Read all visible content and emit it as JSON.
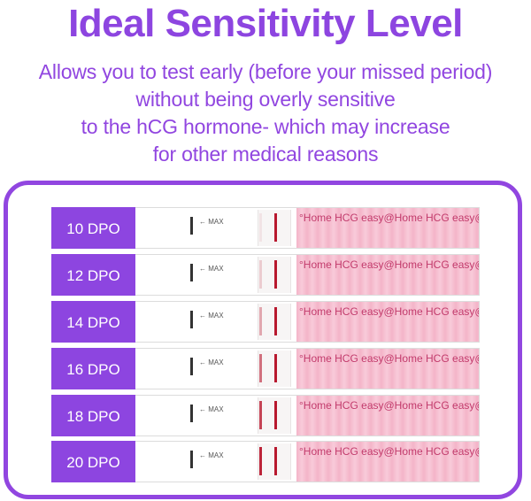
{
  "header": {
    "title": "Ideal Sensitivity Level",
    "subtitle_lines": [
      "Allows you to test early (before your missed period)",
      "without being overly sensitive",
      "to the hCG hormone- which may increase",
      "for other medical reasons"
    ]
  },
  "colors": {
    "accent": "#8d45e0",
    "control_line": "#b8182e",
    "strip_pink": "#f4b4c8"
  },
  "strip_common": {
    "max_label": "← MAX",
    "brand_repeat": "°Home HCG easy@Home HCG easy@Home HCG easy@Home"
  },
  "tests": [
    {
      "label": "10 DPO",
      "test_line_intensity": 0.08
    },
    {
      "label": "12 DPO",
      "test_line_intensity": 0.18
    },
    {
      "label": "14 DPO",
      "test_line_intensity": 0.35
    },
    {
      "label": "16 DPO",
      "test_line_intensity": 0.6
    },
    {
      "label": "18 DPO",
      "test_line_intensity": 0.8
    },
    {
      "label": "20 DPO",
      "test_line_intensity": 0.95
    }
  ]
}
